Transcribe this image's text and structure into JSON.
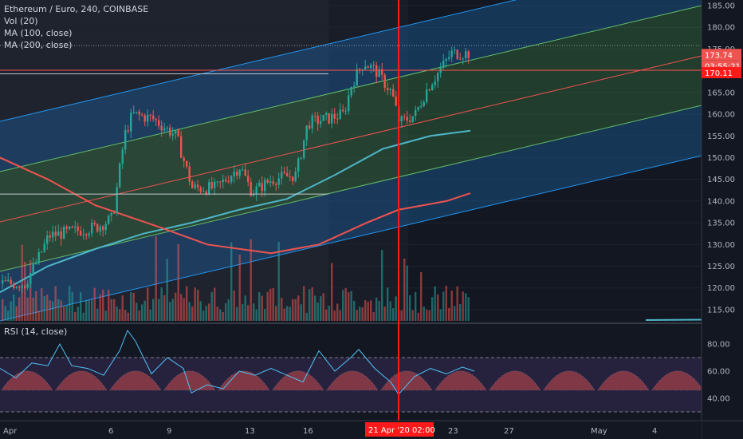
{
  "legend": {
    "title": "Ethereum / Euro, 240, COINBASE",
    "vol": "Vol (20)",
    "ma100": "MA (100, close)",
    "ma200": "MA (200, close)"
  },
  "rsi": {
    "title": "RSI (14, close)"
  },
  "price_axis": [
    "185.00",
    "180.00",
    "175.00",
    "170.00",
    "165.00",
    "160.00",
    "155.00",
    "150.00",
    "145.00",
    "140.00",
    "135.00",
    "130.00",
    "125.00",
    "120.00",
    "115.00"
  ],
  "rsi_axis": [
    "80.00",
    "60.00",
    "40.00"
  ],
  "time_axis": [
    "Apr",
    "6",
    "9",
    "13",
    "16",
    "23",
    "27",
    "May",
    "4"
  ],
  "tags": {
    "price": "173.74",
    "countdown": "03:55:21",
    "level": "170.11",
    "crosshair_time": "21 Apr '20",
    "crosshair_clock": "02:00"
  },
  "colors": {
    "background": "#131722",
    "up": "#26a69a",
    "down": "#ef5350",
    "ma100": "#4db6c8",
    "ma200": "#ef5350",
    "crosshair": "#ff1a1a",
    "rsi_line": "#4fc3f7"
  },
  "chart_data": {
    "type": "candlestick",
    "title": "Ethereum / Euro, 240, COINBASE",
    "y_range": [
      112,
      186
    ],
    "current_price": 173.74,
    "horizontal_level": 170.11,
    "ma100_points": [
      [
        0,
        119
      ],
      [
        60,
        125
      ],
      [
        120,
        129
      ],
      [
        180,
        132.5
      ],
      [
        240,
        135
      ],
      [
        300,
        138
      ],
      [
        360,
        140.5
      ],
      [
        420,
        146
      ],
      [
        480,
        152
      ],
      [
        540,
        155
      ],
      [
        590,
        156.2
      ]
    ],
    "ma200_points": [
      [
        0,
        150
      ],
      [
        60,
        145
      ],
      [
        120,
        139
      ],
      [
        200,
        134
      ],
      [
        260,
        130
      ],
      [
        340,
        128
      ],
      [
        400,
        130
      ],
      [
        460,
        135
      ],
      [
        500,
        138
      ],
      [
        560,
        140
      ],
      [
        590,
        141.8
      ]
    ],
    "rsi_range": [
      25,
      95
    ],
    "rsi_levels": [
      70,
      30
    ],
    "rsi_points": [
      [
        0,
        62
      ],
      [
        20,
        55
      ],
      [
        40,
        66
      ],
      [
        60,
        64
      ],
      [
        75,
        80
      ],
      [
        90,
        64
      ],
      [
        110,
        62
      ],
      [
        130,
        57
      ],
      [
        150,
        75
      ],
      [
        160,
        90
      ],
      [
        170,
        82
      ],
      [
        190,
        58
      ],
      [
        210,
        70
      ],
      [
        230,
        62
      ],
      [
        240,
        44
      ],
      [
        260,
        50
      ],
      [
        280,
        47
      ],
      [
        300,
        60
      ],
      [
        320,
        57
      ],
      [
        340,
        62
      ],
      [
        360,
        57
      ],
      [
        380,
        52
      ],
      [
        400,
        75
      ],
      [
        420,
        60
      ],
      [
        440,
        70
      ],
      [
        450,
        76
      ],
      [
        470,
        62
      ],
      [
        490,
        52
      ],
      [
        500,
        43
      ],
      [
        520,
        56
      ],
      [
        540,
        62
      ],
      [
        560,
        58
      ],
      [
        580,
        63
      ],
      [
        595,
        60
      ]
    ]
  }
}
